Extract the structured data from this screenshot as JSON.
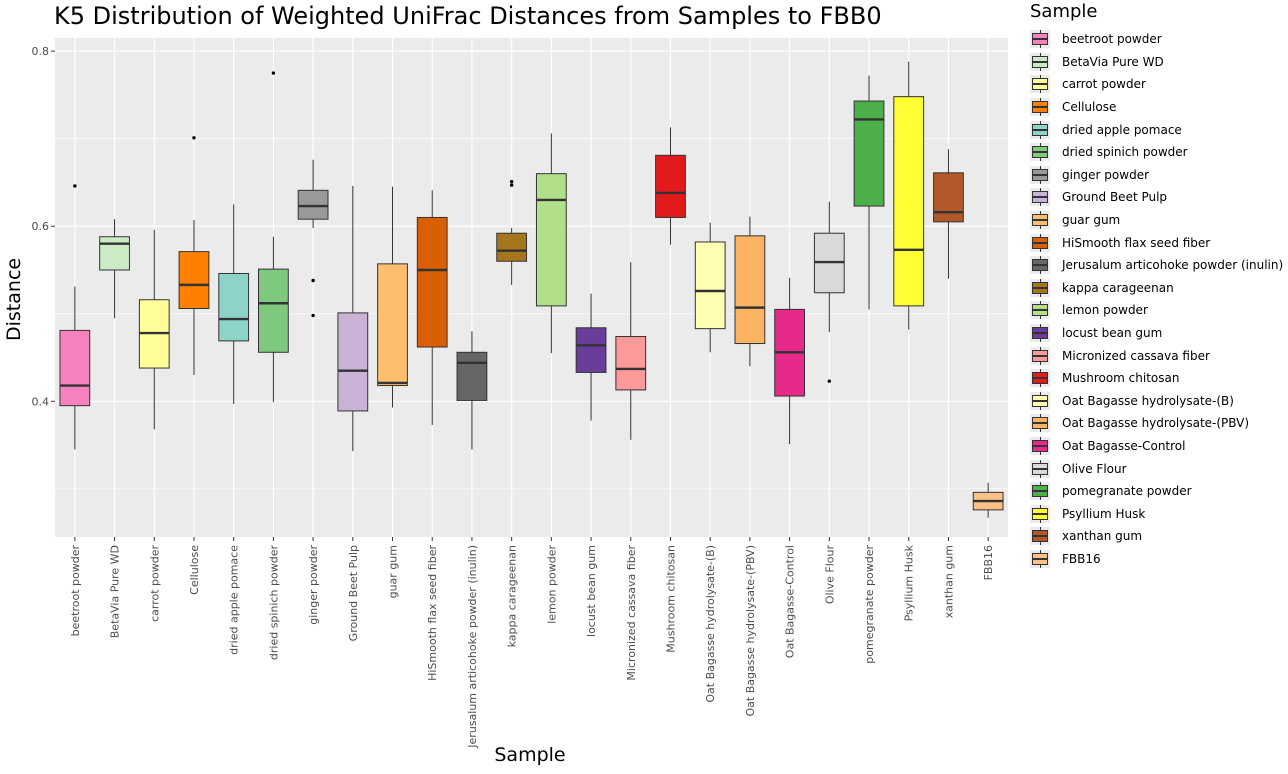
{
  "chart_data": {
    "type": "boxplot",
    "title": "K5 Distribution of Weighted UniFrac Distances from Samples to FBB0",
    "xlabel": "Sample",
    "ylabel": "Distance",
    "ylim": [
      0.245,
      0.815
    ],
    "yticks": [
      0.4,
      0.6,
      0.8
    ],
    "ytick_labels": [
      "0.4",
      "0.6",
      "0.8"
    ],
    "grid": true,
    "legend_title": "Sample",
    "legend_position": "right",
    "categories": [
      {
        "name": "beetroot powder",
        "color": "#f781bf",
        "min": 0.345,
        "q1": 0.395,
        "median": 0.418,
        "q3": 0.481,
        "max": 0.531,
        "outliers": [
          0.646
        ]
      },
      {
        "name": "BetaVia Pure WD",
        "color": "#ccebc5",
        "min": 0.495,
        "q1": 0.55,
        "median": 0.58,
        "q3": 0.588,
        "max": 0.608,
        "outliers": []
      },
      {
        "name": "carrot powder",
        "color": "#ffff99",
        "min": 0.368,
        "q1": 0.438,
        "median": 0.478,
        "q3": 0.516,
        "max": 0.596,
        "outliers": []
      },
      {
        "name": "Cellulose",
        "color": "#ff7f00",
        "min": 0.43,
        "q1": 0.506,
        "median": 0.533,
        "q3": 0.571,
        "max": 0.607,
        "outliers": [
          0.701
        ]
      },
      {
        "name": "dried apple pomace",
        "color": "#8dd3c7",
        "min": 0.397,
        "q1": 0.469,
        "median": 0.494,
        "q3": 0.546,
        "max": 0.625,
        "outliers": []
      },
      {
        "name": "dried spinich powder",
        "color": "#7fc97f",
        "min": 0.399,
        "q1": 0.456,
        "median": 0.512,
        "q3": 0.551,
        "max": 0.588,
        "outliers": [
          0.775
        ]
      },
      {
        "name": "ginger powder",
        "color": "#999999",
        "min": 0.598,
        "q1": 0.608,
        "median": 0.623,
        "q3": 0.641,
        "max": 0.676,
        "outliers": [
          0.538,
          0.498
        ]
      },
      {
        "name": "Ground Beet Pulp",
        "color": "#cab2d6",
        "min": 0.343,
        "q1": 0.389,
        "median": 0.435,
        "q3": 0.501,
        "max": 0.646,
        "outliers": []
      },
      {
        "name": "guar gum",
        "color": "#fdbf6f",
        "min": 0.393,
        "q1": 0.418,
        "median": 0.421,
        "q3": 0.557,
        "max": 0.645,
        "outliers": []
      },
      {
        "name": "HiSmooth flax seed fiber",
        "color": "#d95f02",
        "min": 0.373,
        "q1": 0.462,
        "median": 0.55,
        "q3": 0.61,
        "max": 0.641,
        "outliers": []
      },
      {
        "name": "Jerusalum articohoke powder (inulin)",
        "color": "#666666",
        "min": 0.345,
        "q1": 0.401,
        "median": 0.444,
        "q3": 0.456,
        "max": 0.48,
        "outliers": []
      },
      {
        "name": "kappa carageenan",
        "color": "#a6761d",
        "min": 0.533,
        "q1": 0.56,
        "median": 0.572,
        "q3": 0.592,
        "max": 0.598,
        "outliers": [
          0.651,
          0.647
        ]
      },
      {
        "name": "lemon powder",
        "color": "#b2df8a",
        "min": 0.455,
        "q1": 0.509,
        "median": 0.63,
        "q3": 0.66,
        "max": 0.706,
        "outliers": []
      },
      {
        "name": "locust bean gum",
        "color": "#6a3d9a",
        "min": 0.378,
        "q1": 0.433,
        "median": 0.464,
        "q3": 0.484,
        "max": 0.523,
        "outliers": []
      },
      {
        "name": "Micronized cassava fiber",
        "color": "#fb9a99",
        "min": 0.356,
        "q1": 0.413,
        "median": 0.437,
        "q3": 0.474,
        "max": 0.559,
        "outliers": []
      },
      {
        "name": "Mushroom chitosan",
        "color": "#e31a1c",
        "min": 0.579,
        "q1": 0.61,
        "median": 0.638,
        "q3": 0.681,
        "max": 0.713,
        "outliers": []
      },
      {
        "name": "Oat Bagasse hydrolysate-(B)",
        "color": "#ffffb3",
        "min": 0.456,
        "q1": 0.483,
        "median": 0.526,
        "q3": 0.582,
        "max": 0.604,
        "outliers": []
      },
      {
        "name": "Oat Bagasse hydrolysate-(PBV)",
        "color": "#fdb462",
        "min": 0.44,
        "q1": 0.466,
        "median": 0.507,
        "q3": 0.589,
        "max": 0.611,
        "outliers": []
      },
      {
        "name": "Oat Bagasse-Control",
        "color": "#e7298a",
        "min": 0.351,
        "q1": 0.406,
        "median": 0.456,
        "q3": 0.505,
        "max": 0.541,
        "outliers": []
      },
      {
        "name": "Olive Flour",
        "color": "#d9d9d9",
        "min": 0.479,
        "q1": 0.524,
        "median": 0.559,
        "q3": 0.592,
        "max": 0.628,
        "outliers": [
          0.423
        ]
      },
      {
        "name": "pomegranate powder",
        "color": "#4daf4a",
        "min": 0.505,
        "q1": 0.623,
        "median": 0.722,
        "q3": 0.743,
        "max": 0.772,
        "outliers": []
      },
      {
        "name": "Psyllium Husk",
        "color": "#ffff33",
        "min": 0.482,
        "q1": 0.509,
        "median": 0.573,
        "q3": 0.748,
        "max": 0.788,
        "outliers": []
      },
      {
        "name": "xanthan gum",
        "color": "#b15928",
        "min": 0.54,
        "q1": 0.605,
        "median": 0.616,
        "q3": 0.661,
        "max": 0.688,
        "outliers": []
      },
      {
        "name": "FBB16",
        "color": "#fdc086",
        "min": 0.267,
        "q1": 0.276,
        "median": 0.286,
        "q3": 0.296,
        "max": 0.307,
        "outliers": []
      }
    ]
  }
}
